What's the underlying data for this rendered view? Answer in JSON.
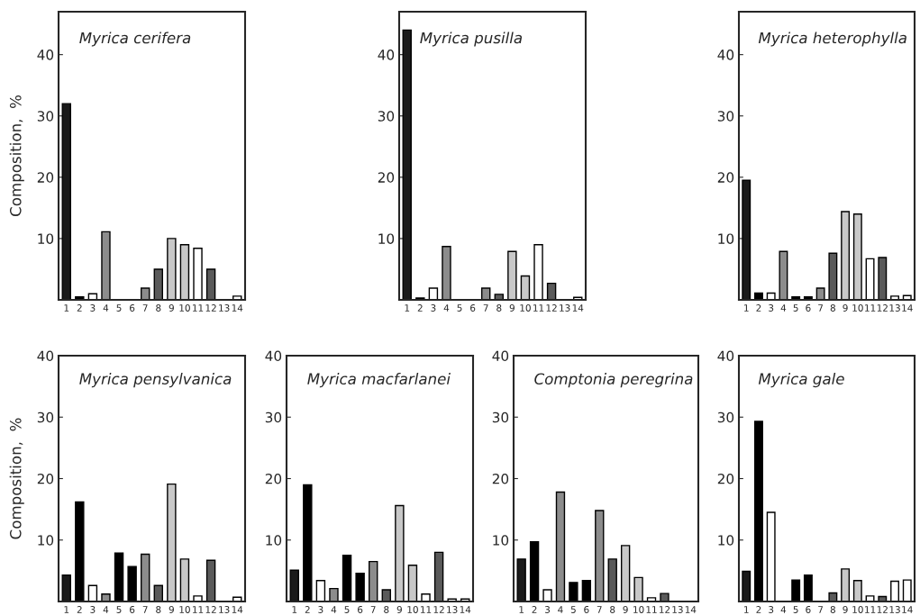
{
  "chart_data": [
    {
      "type": "bar",
      "title": "Myrica cerifera",
      "ylabel": "Composition,  %",
      "categories": [
        "1",
        "2",
        "3",
        "4",
        "5",
        "6",
        "7",
        "8",
        "9",
        "10",
        "11",
        "12",
        "13",
        "14"
      ],
      "values": [
        32,
        0.5,
        1,
        11.1,
        0,
        0,
        1.9,
        5,
        10,
        9,
        8.4,
        5,
        0,
        0.6
      ],
      "colors": [
        "#1a1a1a",
        "#000000",
        "#ffffff",
        "#8c8c8c",
        "#000000",
        "#000000",
        "#8c8c8c",
        "#5a5a5a",
        "#c8c8c8",
        "#c8c8c8",
        "#ffffff",
        "#5a5a5a",
        "#ffffff",
        "#ffffff"
      ],
      "ylim": [
        0,
        47
      ],
      "yticks": [
        10,
        20,
        30,
        40
      ],
      "grid": false,
      "legend": false
    },
    {
      "type": "bar",
      "title": "Myrica pusilla",
      "categories": [
        "1",
        "2",
        "3",
        "4",
        "5",
        "6",
        "7",
        "8",
        "9",
        "10",
        "11",
        "12",
        "13",
        "14"
      ],
      "values": [
        44,
        0.3,
        1.9,
        8.7,
        0,
        0,
        1.9,
        0.9,
        7.9,
        3.9,
        9,
        2.7,
        0,
        0.4
      ],
      "colors": [
        "#1a1a1a",
        "#000000",
        "#ffffff",
        "#8c8c8c",
        "#000000",
        "#000000",
        "#8c8c8c",
        "#5a5a5a",
        "#c8c8c8",
        "#c8c8c8",
        "#ffffff",
        "#5a5a5a",
        "#ffffff",
        "#ffffff"
      ],
      "ylim": [
        0,
        47
      ],
      "yticks": [
        10,
        20,
        30,
        40
      ],
      "grid": false,
      "legend": false
    },
    {
      "type": "bar",
      "title": "Myrica heterophylla",
      "categories": [
        "1",
        "2",
        "3",
        "4",
        "5",
        "6",
        "7",
        "8",
        "9",
        "10",
        "11",
        "12",
        "13",
        "14"
      ],
      "values": [
        19.5,
        1.1,
        1.1,
        7.9,
        0.5,
        0.5,
        1.9,
        7.6,
        14.4,
        14,
        6.7,
        6.9,
        0.6,
        0.7
      ],
      "colors": [
        "#1a1a1a",
        "#000000",
        "#ffffff",
        "#8c8c8c",
        "#000000",
        "#000000",
        "#8c8c8c",
        "#5a5a5a",
        "#c8c8c8",
        "#c8c8c8",
        "#ffffff",
        "#5a5a5a",
        "#ffffff",
        "#ffffff"
      ],
      "ylim": [
        0,
        47
      ],
      "yticks": [
        10,
        20,
        30,
        40
      ],
      "grid": false,
      "legend": false
    },
    {
      "type": "bar",
      "title": "Myrica pensylvanica",
      "ylabel": "Composition,  %",
      "categories": [
        "1",
        "2",
        "3",
        "4",
        "5",
        "6",
        "7",
        "8",
        "9",
        "10",
        "11",
        "12",
        "13",
        "14"
      ],
      "values": [
        4.3,
        16.2,
        2.6,
        1.2,
        7.9,
        5.7,
        7.7,
        2.6,
        19.1,
        6.9,
        0.9,
        6.7,
        0,
        0.7
      ],
      "colors": [
        "#1a1a1a",
        "#000000",
        "#ffffff",
        "#8c8c8c",
        "#000000",
        "#000000",
        "#8c8c8c",
        "#5a5a5a",
        "#c8c8c8",
        "#c8c8c8",
        "#ffffff",
        "#5a5a5a",
        "#ffffff",
        "#ffffff"
      ],
      "ylim": [
        0,
        40
      ],
      "yticks": [
        10,
        20,
        30,
        40
      ],
      "grid": false,
      "legend": false
    },
    {
      "type": "bar",
      "title": "Myrica macfarlanei",
      "categories": [
        "1",
        "2",
        "3",
        "4",
        "5",
        "6",
        "7",
        "8",
        "9",
        "10",
        "11",
        "12",
        "13",
        "14"
      ],
      "values": [
        5.1,
        19,
        3.4,
        2.1,
        7.5,
        4.6,
        6.5,
        1.9,
        15.6,
        5.9,
        1.2,
        8,
        0.4,
        0.4
      ],
      "colors": [
        "#1a1a1a",
        "#000000",
        "#ffffff",
        "#8c8c8c",
        "#000000",
        "#000000",
        "#8c8c8c",
        "#5a5a5a",
        "#c8c8c8",
        "#c8c8c8",
        "#ffffff",
        "#5a5a5a",
        "#ffffff",
        "#ffffff"
      ],
      "ylim": [
        0,
        40
      ],
      "yticks": [
        10,
        20,
        30,
        40
      ],
      "grid": false,
      "legend": false
    },
    {
      "type": "bar",
      "title": "Comptonia peregrina",
      "categories": [
        "1",
        "2",
        "3",
        "4",
        "5",
        "6",
        "7",
        "8",
        "9",
        "10",
        "11",
        "12",
        "13",
        "14"
      ],
      "values": [
        6.9,
        9.7,
        1.9,
        17.8,
        3.1,
        3.4,
        14.8,
        6.9,
        9.1,
        3.9,
        0.6,
        1.3,
        0,
        0
      ],
      "colors": [
        "#1a1a1a",
        "#000000",
        "#ffffff",
        "#8c8c8c",
        "#000000",
        "#000000",
        "#8c8c8c",
        "#5a5a5a",
        "#c8c8c8",
        "#c8c8c8",
        "#ffffff",
        "#5a5a5a",
        "#ffffff",
        "#ffffff"
      ],
      "ylim": [
        0,
        40
      ],
      "yticks": [
        10,
        20,
        30,
        40
      ],
      "grid": false,
      "legend": false
    },
    {
      "type": "bar",
      "title": "Myrica gale",
      "categories": [
        "1",
        "2",
        "3",
        "4",
        "5",
        "6",
        "7",
        "8",
        "9",
        "10",
        "11",
        "12",
        "13",
        "14"
      ],
      "values": [
        4.9,
        29.3,
        14.5,
        0,
        3.5,
        4.3,
        0,
        1.4,
        5.3,
        3.4,
        0.9,
        0.8,
        3.3,
        3.5
      ],
      "colors": [
        "#1a1a1a",
        "#000000",
        "#ffffff",
        "#8c8c8c",
        "#000000",
        "#000000",
        "#8c8c8c",
        "#5a5a5a",
        "#c8c8c8",
        "#c8c8c8",
        "#ffffff",
        "#5a5a5a",
        "#ffffff",
        "#ffffff"
      ],
      "ylim": [
        0,
        40
      ],
      "yticks": [
        10,
        20,
        30,
        40
      ],
      "grid": false,
      "legend": false
    }
  ]
}
